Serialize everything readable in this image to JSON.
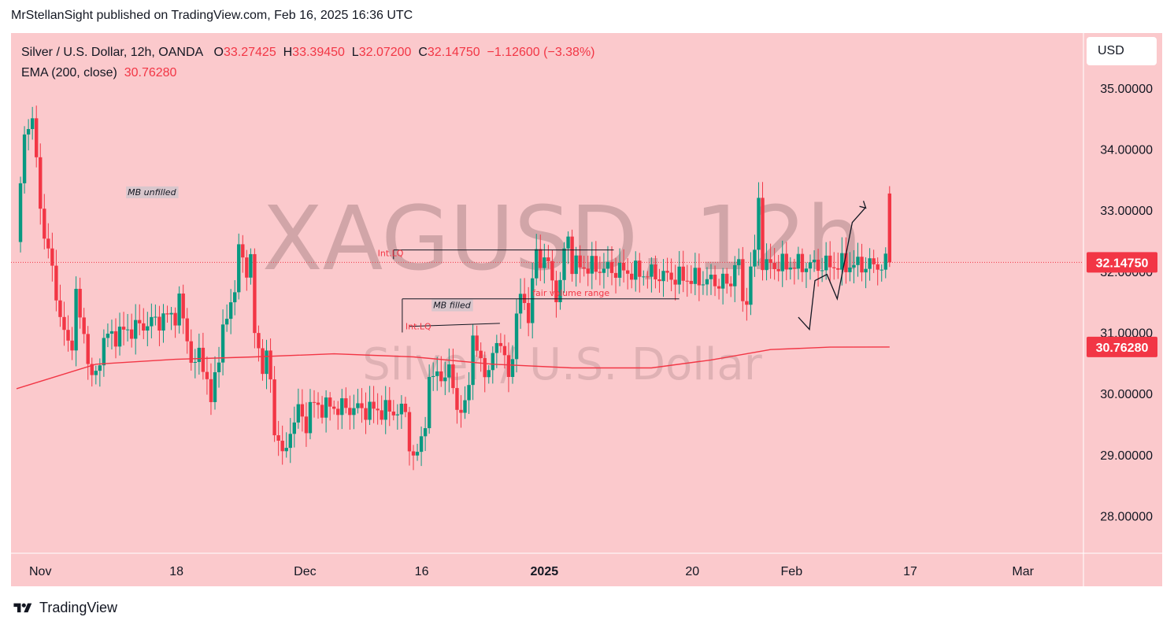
{
  "header": {
    "published_by": "MrStellanSight published on TradingView.com, Feb 16, 2025 16:36 UTC"
  },
  "legend": {
    "symbol": "Silver / U.S. Dollar, 12h, OANDA",
    "o_label": "O",
    "o": "33.27425",
    "h_label": "H",
    "h": "33.39450",
    "l_label": "L",
    "l": "32.07200",
    "c_label": "C",
    "c": "32.14750",
    "change": "−1.12600 (−3.38%)",
    "ema_label": "EMA (200, close)",
    "ema_value": "30.76280"
  },
  "currency_button": "USD",
  "watermark": {
    "title": "XAGUSD, 12h",
    "subtitle": "Silver / U.S. Dollar"
  },
  "footer": {
    "brand": "TradingView"
  },
  "colors": {
    "background": "#fbc9cc",
    "bull": "#089981",
    "bear": "#f23645",
    "ema": "#f23645",
    "annotation": "#131722"
  },
  "chart_data": {
    "type": "candlestick",
    "title": "Silver / U.S. Dollar, 12h, OANDA",
    "ylim": [
      27.4,
      35.9
    ],
    "y_ticks": [
      "35.00000",
      "34.00000",
      "33.00000",
      "32.00000",
      "31.00000",
      "30.00000",
      "29.00000",
      "28.00000"
    ],
    "y_tick_values": [
      35,
      34,
      33,
      32,
      31,
      30,
      29,
      28
    ],
    "x_labels": [
      {
        "label": "Nov",
        "x": 6
      },
      {
        "label": "18",
        "x": 40.3
      },
      {
        "label": "Dec",
        "x": 72.7
      },
      {
        "label": "16",
        "x": 102.1
      },
      {
        "label": "2025",
        "x": 133
      },
      {
        "label": "20",
        "x": 170.3
      },
      {
        "label": "Feb",
        "x": 195.3
      },
      {
        "label": "17",
        "x": 225.2
      },
      {
        "label": "Mar",
        "x": 253.6
      }
    ],
    "price_label": {
      "value": 32.1475,
      "text": "32.14750"
    },
    "ema_label": {
      "value": 30.7628,
      "text": "30.76280"
    },
    "candles_range": [
      0,
      220
    ],
    "anchors": [
      [
        0,
        32.4,
        33.4,
        34.2,
        34.5,
        34.4,
        33.8,
        33.1,
        32.6,
        32.3,
        32.0,
        31.7,
        31.2,
        31.0,
        30.8,
        30.9,
        31.6,
        31.2,
        31.0,
        30.6,
        30.2,
        30.3,
        30.6,
        30.9
      ],
      [
        40,
        31.3,
        31.5,
        31.2,
        30.9,
        30.6,
        30.4,
        30.7,
        30.5,
        30.2,
        29.8,
        30.3,
        30.7,
        31.0,
        31.2,
        31.5,
        31.8,
        32.3,
        32.2,
        32.0,
        32.3,
        30.9,
        30.7,
        30.5,
        30.6,
        30.2,
        29.3,
        29.4,
        28.9,
        29.1,
        29.4,
        29.6,
        29.7,
        29.6,
        29.5,
        29.8
      ],
      [
        98,
        29.7,
        29.2,
        28.9,
        29.0,
        29.3,
        29.6,
        30.1,
        30.3,
        30.4,
        30.3,
        30.1,
        30.5,
        30.2,
        29.7,
        29.6,
        29.9,
        30.3,
        30.8,
        30.7,
        30.6,
        30.4,
        30.2,
        30.7,
        30.9,
        30.8,
        30.5,
        30.3,
        30.7,
        31.2,
        31.6,
        31.5,
        31.3,
        31.7,
        32.4,
        32.1,
        32.3,
        32.0,
        31.9,
        31.6,
        31.8,
        32.3,
        32.6,
        32.1
      ],
      [
        180,
        31.8,
        32.2,
        32.0,
        31.6,
        31.5,
        32.1,
        32.2,
        33.3,
        32.1
      ]
    ],
    "ema": [
      [
        0,
        30.08
      ],
      [
        20,
        30.48
      ],
      [
        40,
        30.56
      ],
      [
        60,
        30.6
      ],
      [
        80,
        30.65
      ],
      [
        100,
        30.6
      ],
      [
        120,
        30.48
      ],
      [
        140,
        30.42
      ],
      [
        160,
        30.42
      ],
      [
        175,
        30.55
      ],
      [
        190,
        30.72
      ],
      [
        205,
        30.76
      ],
      [
        220,
        30.7628
      ]
    ],
    "last_candle": {
      "o": 33.27425,
      "h": 33.3945,
      "l": 32.072,
      "c": 32.1475
    }
  },
  "annotations": [
    {
      "text": "MB unfilled",
      "x": 28,
      "y": 33.3
    },
    {
      "text": "Int.LQ",
      "x": 91,
      "y": 32.3
    },
    {
      "text": "fair volume range",
      "x": 130,
      "y": 31.65
    },
    {
      "text": "MB filled",
      "x": 105,
      "y": 31.45
    },
    {
      "text": "Int.LQ",
      "x": 98,
      "y": 31.1
    }
  ]
}
